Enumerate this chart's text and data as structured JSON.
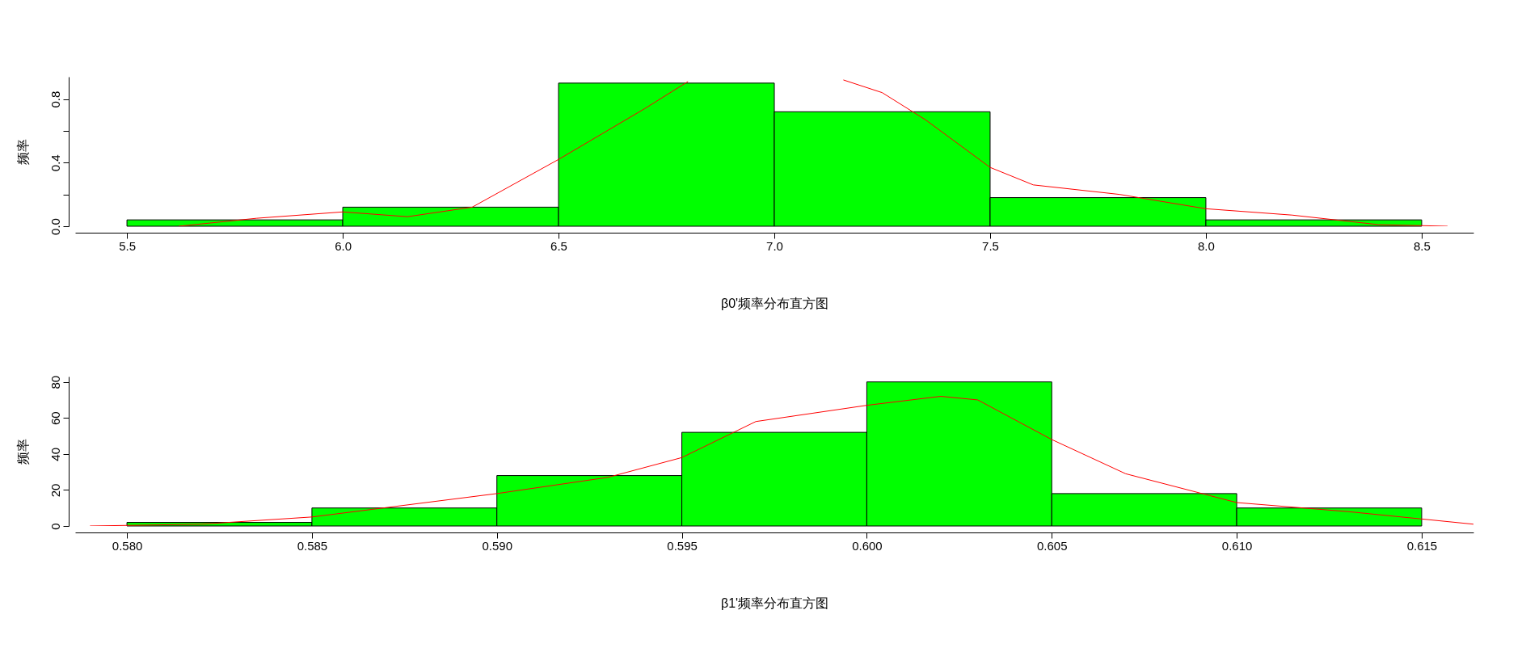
{
  "chart_data": [
    {
      "type": "histogram",
      "xlabel": "β0'频率分布直方图",
      "ylabel": "频率",
      "color": "#00ff00",
      "bins": [
        5.5,
        6.0,
        6.5,
        7.0,
        7.5,
        8.0,
        8.5
      ],
      "values": [
        0.04,
        0.12,
        0.9,
        0.72,
        0.18,
        0.04
      ],
      "series": [
        {
          "type": "line",
          "color": "#ff0000",
          "x": [
            5.62,
            5.8,
            6.0,
            6.15,
            6.3,
            6.5,
            6.6,
            6.7,
            6.8,
            7.0,
            7.16,
            7.25,
            7.35,
            7.5,
            7.6,
            7.8,
            8.0,
            8.2,
            8.4,
            8.56
          ],
          "values": [
            0.0,
            0.05,
            0.09,
            0.06,
            0.12,
            0.42,
            0.58,
            0.74,
            0.91,
            null,
            0.92,
            0.84,
            0.67,
            0.37,
            0.26,
            0.2,
            0.11,
            0.07,
            0.01,
            0.0
          ]
        }
      ],
      "xlim": [
        5.38,
        8.62
      ],
      "ylim": [
        0,
        0.94
      ],
      "xticks": [
        5.5,
        {
          "value": 6,
          "label": "6.0"
        },
        6.5,
        {
          "value": 7,
          "label": "7.0"
        },
        7.5,
        {
          "value": 8,
          "label": "8.0"
        },
        8.5
      ],
      "yticks": [
        {
          "value": 0,
          "label": "0.0"
        },
        {
          "value": 0.2,
          "label": null
        },
        0.4,
        {
          "value": 0.6,
          "label": null
        },
        0.8
      ],
      "grid": false
    },
    {
      "type": "histogram",
      "xlabel": "β1'频率分布直方图",
      "ylabel": "频率",
      "color": "#00ff00",
      "bins": [
        0.58,
        0.585,
        0.59,
        0.595,
        0.6,
        0.605,
        0.61,
        0.615
      ],
      "values": [
        2,
        10,
        28,
        52,
        80,
        18,
        10
      ],
      "series": [
        {
          "type": "line",
          "color": "#ff0000",
          "x": [
            0.579,
            0.582,
            0.585,
            0.59,
            0.593,
            0.595,
            0.597,
            0.6,
            0.602,
            0.603,
            0.605,
            0.607,
            0.61,
            0.613,
            0.6164
          ],
          "values": [
            0,
            1,
            5,
            18,
            27,
            38,
            58,
            67,
            72,
            70,
            48,
            29,
            13,
            8,
            1
          ]
        }
      ],
      "xlim": [
        0.5786,
        0.6164
      ],
      "ylim": [
        0,
        83
      ],
      "xticks": [
        {
          "value": 0.58,
          "label": "0.580"
        },
        0.585,
        {
          "value": 0.59,
          "label": "0.590"
        },
        0.595,
        {
          "value": 0.6,
          "label": "0.600"
        },
        0.605,
        {
          "value": 0.61,
          "label": "0.610"
        },
        0.615
      ],
      "yticks": [
        0,
        20,
        40,
        60,
        80
      ],
      "grid": false
    }
  ]
}
